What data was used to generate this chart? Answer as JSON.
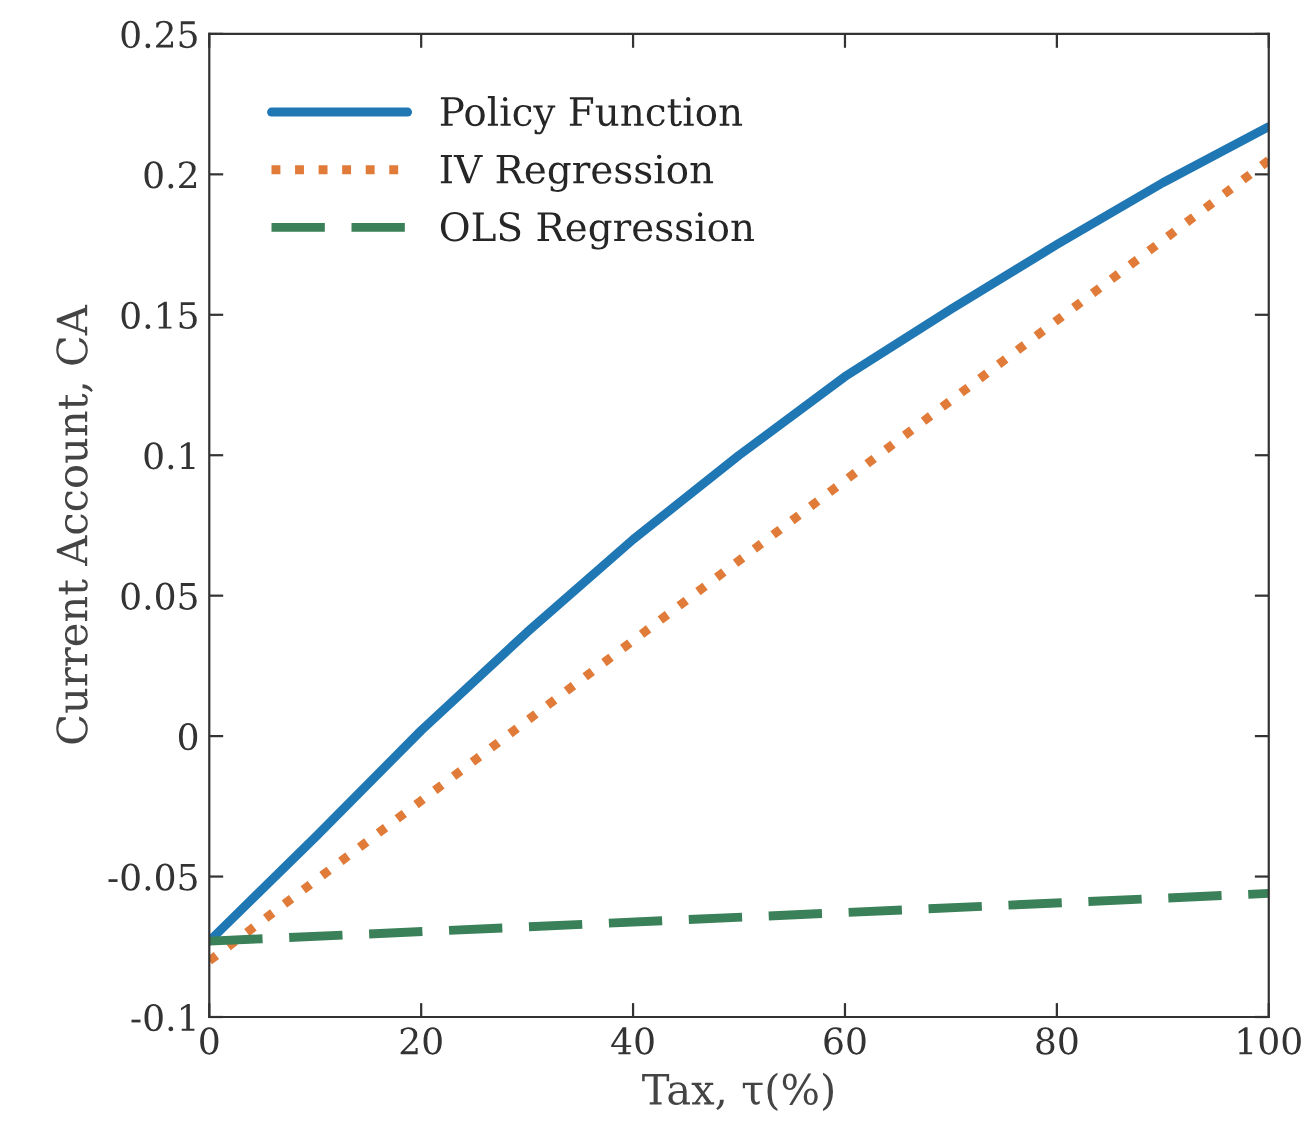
{
  "chart_data": {
    "type": "line",
    "xlabel": "Tax, τ(%)",
    "ylabel": "Current Account, CA",
    "xlim": [
      0,
      100
    ],
    "ylim": [
      -0.1,
      0.25
    ],
    "xticks": [
      0,
      20,
      40,
      60,
      80,
      100
    ],
    "yticks": [
      -0.1,
      -0.05,
      0,
      0.05,
      0.1,
      0.15,
      0.2,
      0.25
    ],
    "grid": false,
    "legend": "top left",
    "series": [
      {
        "name": "Policy Function",
        "color": "#1f77b4",
        "line_style": "solid",
        "x": [
          0,
          10,
          20,
          30,
          40,
          50,
          60,
          70,
          80,
          90,
          100
        ],
        "values": [
          -0.073,
          -0.036,
          0.002,
          0.037,
          0.07,
          0.1,
          0.128,
          0.152,
          0.175,
          0.197,
          0.217
        ]
      },
      {
        "name": "IV Regression",
        "color": "#e07b39",
        "line_style": "dotted",
        "x": [
          0,
          100
        ],
        "values": [
          -0.08,
          0.205
        ]
      },
      {
        "name": "OLS Regression",
        "color": "#3a8058",
        "line_style": "dashed",
        "x": [
          0,
          100
        ],
        "values": [
          -0.073,
          -0.056
        ]
      }
    ]
  }
}
